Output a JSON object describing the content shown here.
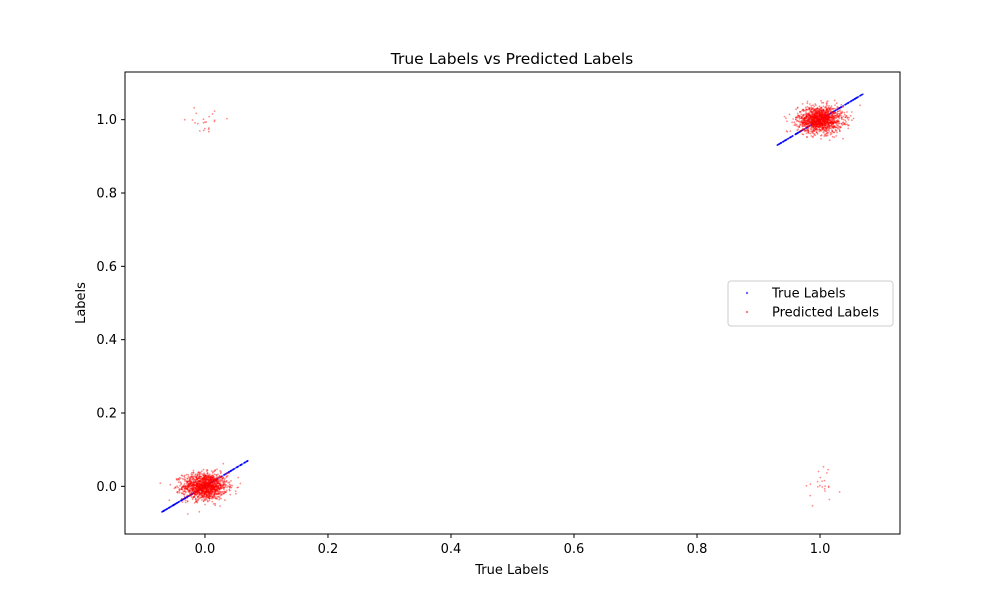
{
  "chart_data": {
    "type": "scatter",
    "title": "True Labels vs Predicted Labels",
    "xlabel": "True Labels",
    "ylabel": "Labels",
    "xlim": [
      -0.13,
      1.13
    ],
    "ylim": [
      -0.13,
      1.13
    ],
    "xticks": [
      0.0,
      0.2,
      0.4,
      0.6,
      0.8,
      1.0
    ],
    "yticks": [
      0.0,
      0.2,
      0.4,
      0.6,
      0.8,
      1.0
    ],
    "xtick_labels": [
      "0.0",
      "0.2",
      "0.4",
      "0.6",
      "0.8",
      "1.0"
    ],
    "ytick_labels": [
      "0.0",
      "0.2",
      "0.4",
      "0.6",
      "0.8",
      "1.0"
    ],
    "grid": false,
    "legend_position": "center-right",
    "series": [
      {
        "name": "True Labels",
        "color": "#0000ff",
        "marker": "dot",
        "description_points": "points lie on the diagonal y = x around the two true classes",
        "clusters": [
          {
            "x_center": 0.0,
            "y_center": 0.0,
            "x_spread": 0.07,
            "relation": "y equals x"
          },
          {
            "x_center": 1.0,
            "y_center": 1.0,
            "x_spread": 0.07,
            "relation": "y equals x"
          }
        ]
      },
      {
        "name": "Predicted Labels",
        "color": "#ff0000",
        "marker": "dot",
        "clusters": [
          {
            "x_center": 0.0,
            "y_center": 0.0,
            "x_sd": 0.018,
            "y_sd": 0.018,
            "density": "dense"
          },
          {
            "x_center": 1.0,
            "y_center": 1.0,
            "x_sd": 0.018,
            "y_sd": 0.018,
            "density": "dense"
          },
          {
            "x_center": 0.0,
            "y_center": 1.0,
            "x_sd": 0.015,
            "y_sd": 0.015,
            "density": "sparse"
          },
          {
            "x_center": 1.0,
            "y_center": 0.0,
            "x_sd": 0.015,
            "y_sd": 0.02,
            "density": "sparse"
          }
        ]
      }
    ]
  }
}
